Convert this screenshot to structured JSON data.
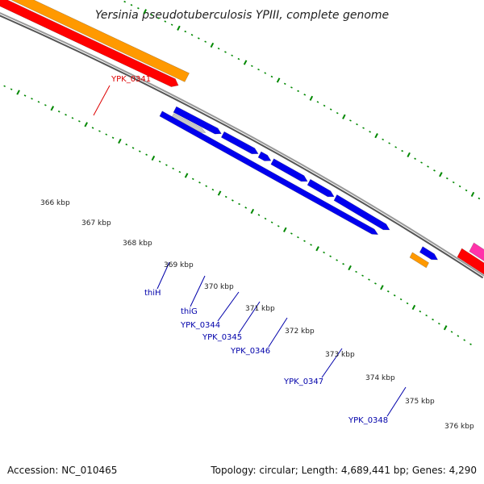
{
  "header": {
    "title": "Yersinia pseudotuberculosis YPIII, complete genome"
  },
  "footer": {
    "accession": "Accession: NC_010465",
    "summary": "Topology: circular; Length: 4,689,441 bp; Genes: 4,290"
  },
  "colors": {
    "orange": "#ff9900",
    "red": "#ff0000",
    "blue": "#0000ee",
    "gray": "#c8c8c8",
    "magenta": "#ff33aa",
    "tick_green": "#008800",
    "backbone": "#777777",
    "label_red": "#dd0000",
    "label_blue": "#0000aa"
  },
  "ticks": {
    "labels": [
      "366 kbp",
      "367 kbp",
      "368 kbp",
      "369 kbp",
      "370 kbp",
      "371 kbp",
      "372 kbp",
      "373 kbp",
      "374 kbp",
      "375 kbp",
      "376 kbp"
    ]
  },
  "genes": {
    "upper_labels": [
      "YPK_0341"
    ],
    "lower_labels": [
      "thiH",
      "thiG",
      "YPK_0344",
      "YPK_0345",
      "YPK_0346",
      "YPK_0347",
      "YPK_0348"
    ]
  }
}
